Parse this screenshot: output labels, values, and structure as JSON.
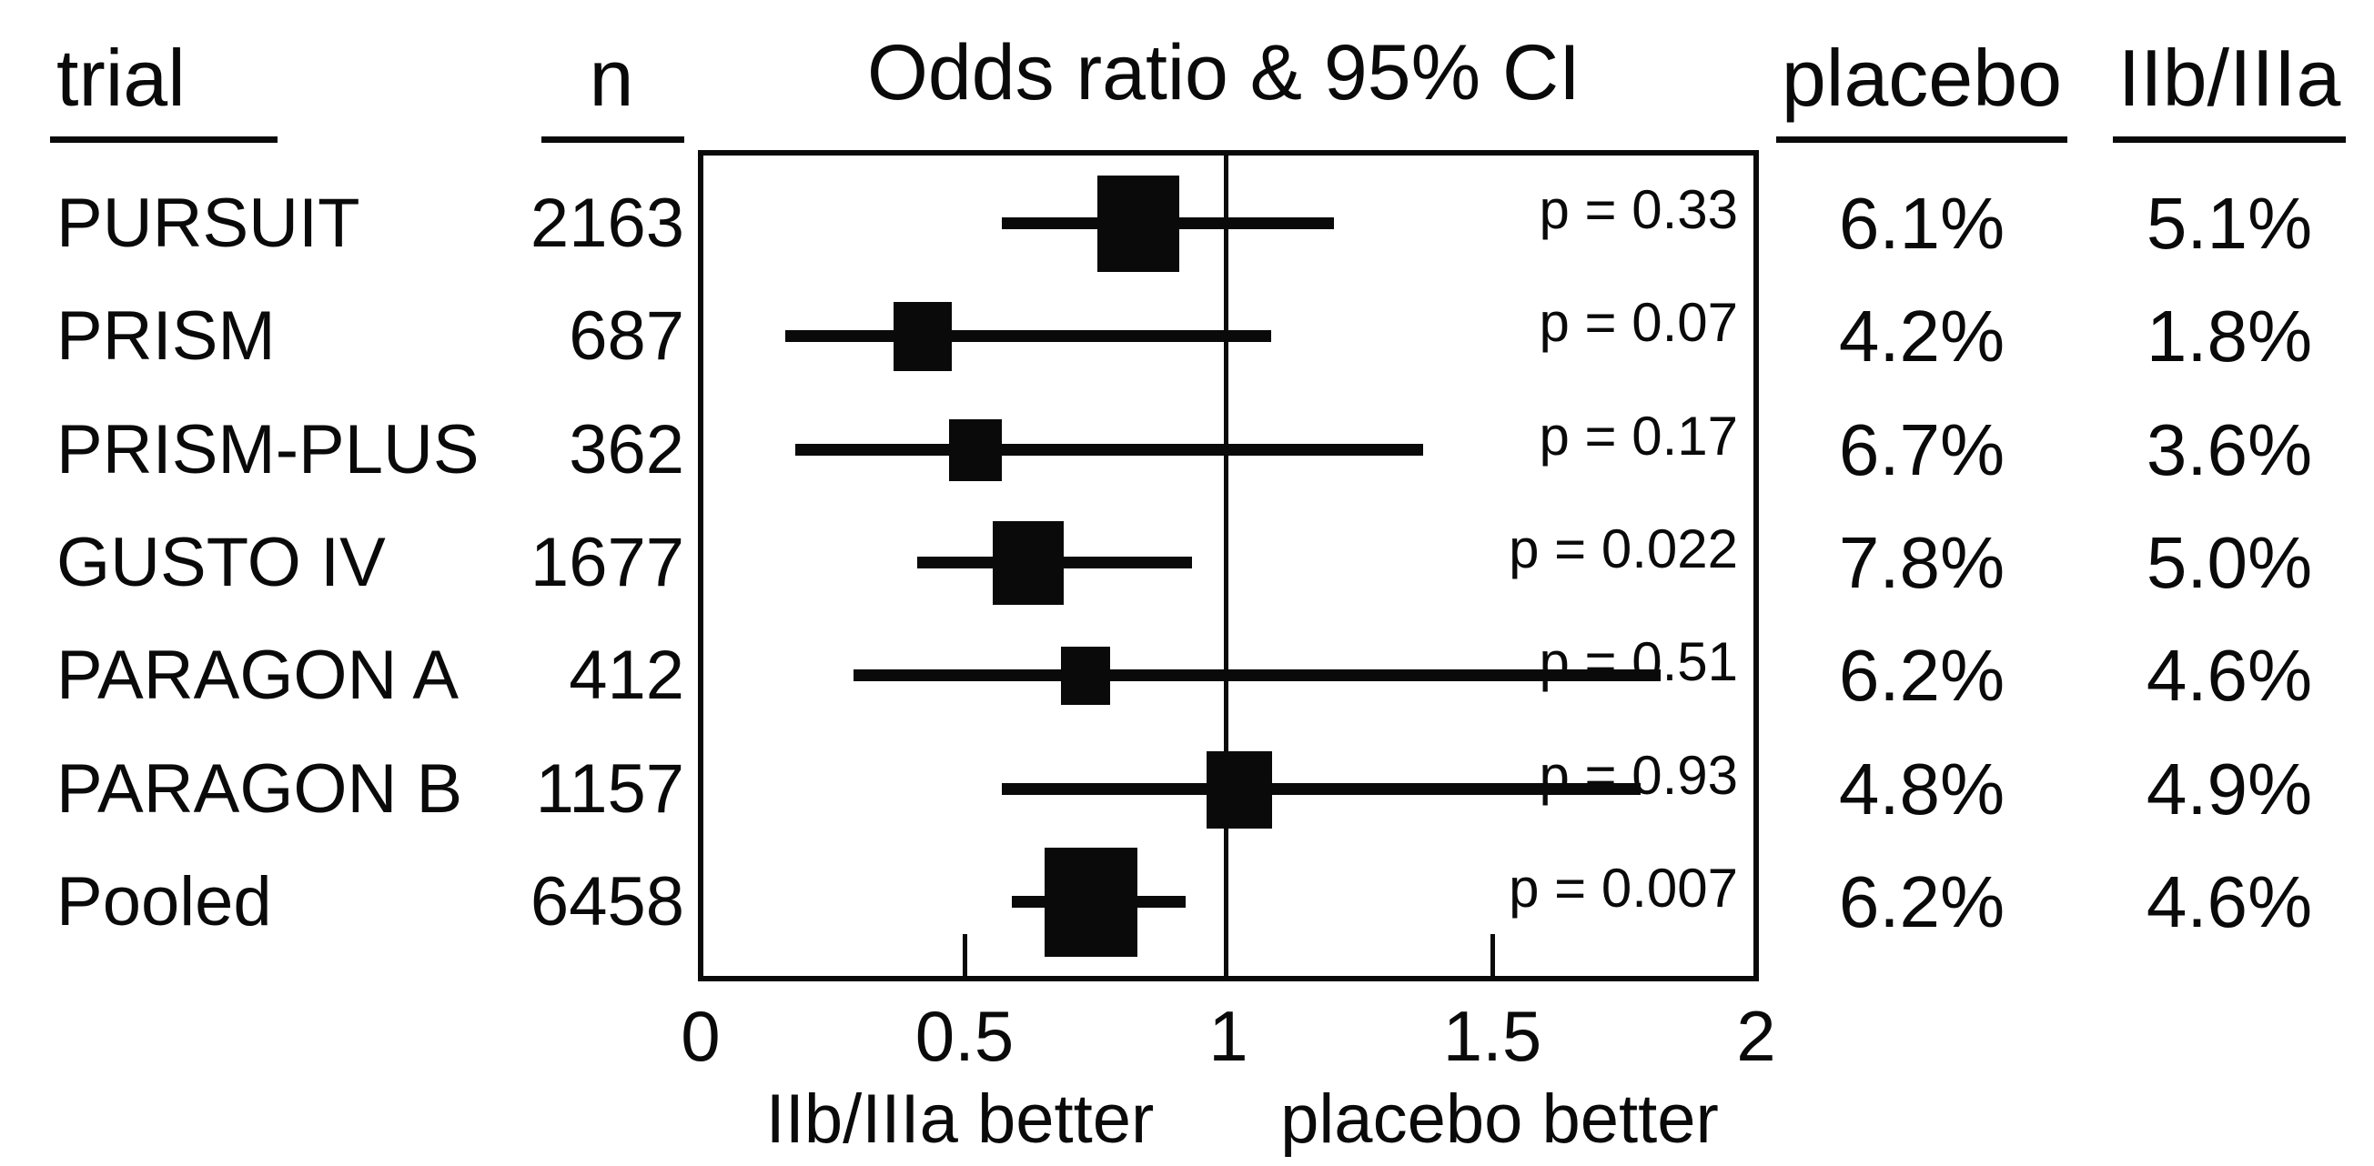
{
  "figure": {
    "background": "#ffffff",
    "ink": "#0a0a0a"
  },
  "headers": {
    "trial": "trial",
    "n": "n",
    "plot_title": "Odds ratio & 95% CI",
    "placebo": "placebo",
    "iib_iiia": "IIb/IIIa"
  },
  "axis": {
    "ticks": [
      "0",
      "0.5",
      "1",
      "1.5",
      "2"
    ],
    "left_label": "IIb/IIIa better",
    "right_label": "placebo better"
  },
  "chart_data": {
    "type": "forest",
    "title": "Odds ratio & 95% CI",
    "xlim": [
      0,
      2
    ],
    "x_ticks": [
      0,
      0.5,
      1,
      1.5,
      2
    ],
    "reference_line_x": 1,
    "xlabel_left": "IIb/IIIa better",
    "xlabel_right": "placebo better",
    "grid": false,
    "marker_color": "#0a0a0a",
    "rows": [
      {
        "trial": "PURSUIT",
        "n": 2163,
        "odds_ratio": 0.83,
        "ci_low": 0.57,
        "ci_high": 1.2,
        "p_label": "p = 0.33",
        "placebo_rate": "6.1%",
        "iib_iiia_rate": "5.1%",
        "marker_px": 90
      },
      {
        "trial": "PRISM",
        "n": 687,
        "odds_ratio": 0.42,
        "ci_low": 0.16,
        "ci_high": 1.08,
        "p_label": "p = 0.07",
        "placebo_rate": "4.2%",
        "iib_iiia_rate": "1.8%",
        "marker_px": 64
      },
      {
        "trial": "PRISM-PLUS",
        "n": 362,
        "odds_ratio": 0.52,
        "ci_low": 0.18,
        "ci_high": 1.37,
        "p_label": "p = 0.17",
        "placebo_rate": "6.7%",
        "iib_iiia_rate": "3.6%",
        "marker_px": 58
      },
      {
        "trial": "GUSTO IV",
        "n": 1677,
        "odds_ratio": 0.62,
        "ci_low": 0.41,
        "ci_high": 0.93,
        "p_label": "p = 0.022",
        "placebo_rate": "7.8%",
        "iib_iiia_rate": "5.0%",
        "marker_px": 78
      },
      {
        "trial": "PARAGON A",
        "n": 412,
        "odds_ratio": 0.73,
        "ci_low": 0.29,
        "ci_high": 1.82,
        "p_label": "p = 0.51",
        "placebo_rate": "6.2%",
        "iib_iiia_rate": "4.6%",
        "marker_px": 54
      },
      {
        "trial": "PARAGON B",
        "n": 1157,
        "odds_ratio": 1.02,
        "ci_low": 0.57,
        "ci_high": 1.78,
        "p_label": "p = 0.93",
        "placebo_rate": "4.8%",
        "iib_iiia_rate": "4.9%",
        "marker_px": 72
      },
      {
        "trial": "Pooled",
        "n": 6458,
        "odds_ratio": 0.74,
        "ci_low": 0.59,
        "ci_high": 0.92,
        "p_label": "p = 0.007",
        "placebo_rate": "6.2%",
        "iib_iiia_rate": "4.6%",
        "marker_px": 102
      }
    ]
  }
}
